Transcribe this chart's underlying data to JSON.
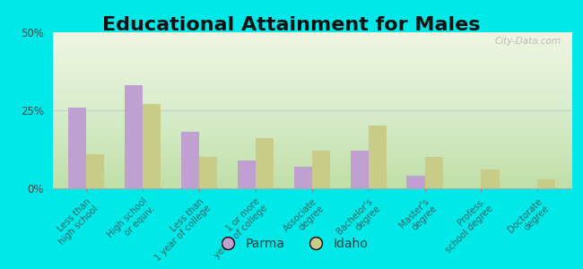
{
  "title": "Educational Attainment for Males",
  "categories": [
    "Less than\nhigh school",
    "High school\nor equiv.",
    "Less than\n1 year of college",
    "1 or more\nyears of college",
    "Associate\ndegree",
    "Bachelor's\ndegree",
    "Master's\ndegree",
    "Profess.\nschool degree",
    "Doctorate\ndegree"
  ],
  "parma_values": [
    26,
    33,
    18,
    9,
    7,
    12,
    4,
    0,
    0
  ],
  "idaho_values": [
    11,
    27,
    10,
    16,
    12,
    20,
    10,
    6,
    3
  ],
  "parma_color": "#c0a0d0",
  "idaho_color": "#c8cc88",
  "ylim": [
    0,
    50
  ],
  "yticks": [
    0,
    25,
    50
  ],
  "ytick_labels": [
    "0%",
    "25%",
    "50%"
  ],
  "outer_background": "#00e8e8",
  "title_fontsize": 16,
  "legend_labels": [
    "Parma",
    "Idaho"
  ],
  "watermark": "City-Data.com"
}
